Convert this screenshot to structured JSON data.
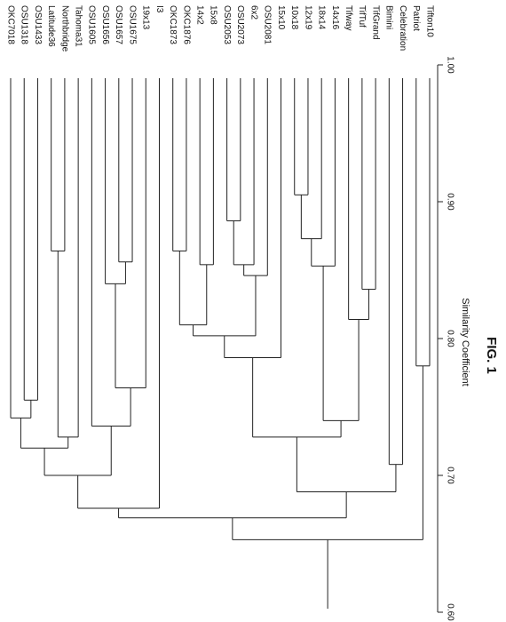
{
  "chart_data": {
    "type": "dendrogram",
    "axis_label": "Similarity Coefficient",
    "figure_label": "FIG. 1",
    "ylim": [
      0.6,
      1.0
    ],
    "yticks": [
      {
        "value": 0.6,
        "label": "0.60"
      },
      {
        "value": 0.7,
        "label": "0.70"
      },
      {
        "value": 0.8,
        "label": "0.80"
      },
      {
        "value": 0.9,
        "label": "0.90"
      },
      {
        "value": 1.0,
        "label": "1.00"
      }
    ],
    "tree": {
      "height": 0.653,
      "children": [
        {
          "height": 0.669,
          "children": [
            {
              "height": 0.676,
              "children": [
                {
                  "height": 0.7,
                  "children": [
                    {
                      "height": 0.72,
                      "children": [
                        {
                          "height": 0.742,
                          "children": [
                            {
                              "label": "OKC7018"
                            },
                            {
                              "height": 0.755,
                              "children": [
                                {
                                  "label": "OSU1318"
                                },
                                {
                                  "label": "OSU1433"
                                }
                              ]
                            }
                          ]
                        },
                        {
                          "height": 0.728,
                          "children": [
                            {
                              "height": 0.864,
                              "children": [
                                {
                                  "label": "Latitude36"
                                },
                                {
                                  "label": "Northbridge"
                                }
                              ]
                            },
                            {
                              "label": "Tahoma31"
                            }
                          ]
                        }
                      ]
                    },
                    {
                      "height": 0.736,
                      "children": [
                        {
                          "label": "OSU1605"
                        },
                        {
                          "height": 0.764,
                          "children": [
                            {
                              "height": 0.84,
                              "children": [
                                {
                                  "label": "OSU1656"
                                },
                                {
                                  "height": 0.856,
                                  "children": [
                                    {
                                      "label": "OSU1657"
                                    },
                                    {
                                      "label": "OSU1675"
                                    }
                                  ]
                                }
                              ]
                            },
                            {
                              "label": "19x13"
                            }
                          ]
                        }
                      ]
                    }
                  ]
                },
                {
                  "label": "I3"
                }
              ]
            },
            {
              "height": 0.688,
              "children": [
                {
                  "height": 0.728,
                  "children": [
                    {
                      "height": 0.786,
                      "children": [
                        {
                          "height": 0.802,
                          "children": [
                            {
                              "height": 0.81,
                              "children": [
                                {
                                  "height": 0.864,
                                  "children": [
                                    {
                                      "label": "OKC1873"
                                    },
                                    {
                                      "label": "OKC1876"
                                    }
                                  ]
                                },
                                {
                                  "height": 0.854,
                                  "children": [
                                    {
                                      "label": "14x2"
                                    },
                                    {
                                      "label": "15x8"
                                    }
                                  ]
                                }
                              ]
                            },
                            {
                              "height": 0.846,
                              "children": [
                                {
                                  "height": 0.854,
                                  "children": [
                                    {
                                      "height": 0.886,
                                      "children": [
                                        {
                                          "label": "OSU2053"
                                        },
                                        {
                                          "label": "OSU2073"
                                        }
                                      ]
                                    },
                                    {
                                      "label": "6x2"
                                    }
                                  ]
                                },
                                {
                                  "label": "OSU2081"
                                }
                              ]
                            }
                          ]
                        },
                        {
                          "label": "15x10"
                        }
                      ]
                    },
                    {
                      "height": 0.74,
                      "children": [
                        {
                          "height": 0.853,
                          "children": [
                            {
                              "height": 0.873,
                              "children": [
                                {
                                  "height": 0.905,
                                  "children": [
                                    {
                                      "label": "10x18"
                                    },
                                    {
                                      "label": "12x19"
                                    }
                                  ]
                                },
                                {
                                  "label": "18x14"
                                }
                              ]
                            },
                            {
                              "label": "14x16"
                            }
                          ]
                        },
                        {
                          "height": 0.814,
                          "children": [
                            {
                              "label": "Tifway"
                            },
                            {
                              "height": 0.836,
                              "children": [
                                {
                                  "label": "TifTuf"
                                },
                                {
                                  "label": "TifGrand"
                                }
                              ]
                            }
                          ]
                        }
                      ]
                    }
                  ]
                },
                {
                  "height": 0.708,
                  "children": [
                    {
                      "label": "Bimini"
                    },
                    {
                      "label": "Celebration"
                    }
                  ]
                }
              ]
            }
          ]
        },
        {
          "height": 0.78,
          "children": [
            {
              "label": "Patriot"
            },
            {
              "label": "Tifton10"
            }
          ]
        }
      ]
    }
  }
}
